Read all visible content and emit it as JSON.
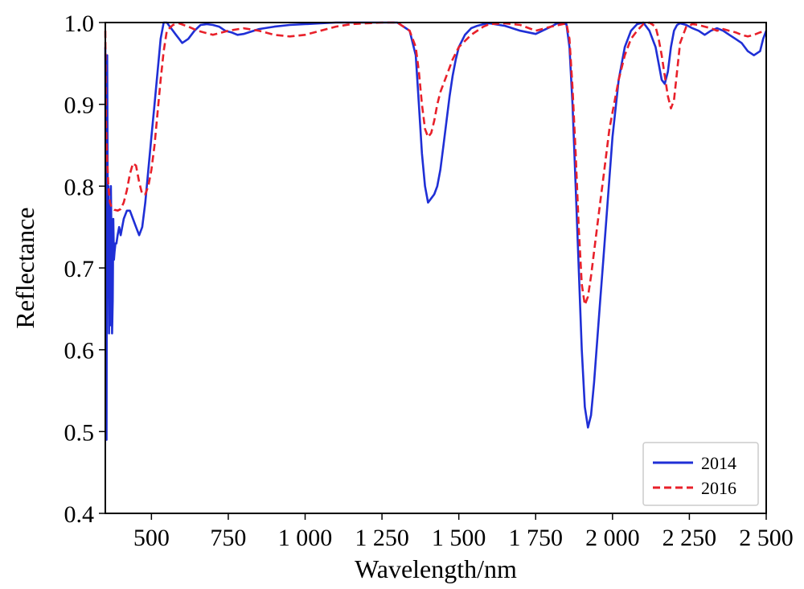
{
  "chart_data": {
    "type": "line",
    "title": "",
    "xlabel": "Wavelength/nm",
    "ylabel": "Reflectance",
    "xlim": [
      350,
      2500
    ],
    "ylim": [
      0.4,
      1.0
    ],
    "x_ticks": [
      500,
      750,
      1000,
      1250,
      1500,
      1750,
      2000,
      2250,
      2500
    ],
    "x_tick_labels": [
      "500",
      "750",
      "1 000",
      "1 250",
      "1 500",
      "1 750",
      "2 000",
      "2 250",
      "2 500"
    ],
    "y_ticks": [
      0.4,
      0.5,
      0.6,
      0.7,
      0.8,
      0.9,
      1.0
    ],
    "y_tick_labels": [
      "0.4",
      "0.5",
      "0.6",
      "0.7",
      "0.8",
      "0.9",
      "1.0"
    ],
    "grid": false,
    "legend_position": "bottom-right",
    "series": [
      {
        "name": "2014",
        "color": "#1f2fd6",
        "style": "solid",
        "x": [
          350,
          352,
          354,
          356,
          358,
          360,
          362,
          364,
          366,
          368,
          370,
          372,
          374,
          376,
          378,
          380,
          383,
          386,
          390,
          395,
          400,
          410,
          420,
          430,
          440,
          450,
          460,
          470,
          480,
          490,
          500,
          510,
          520,
          530,
          540,
          550,
          560,
          570,
          580,
          590,
          600,
          620,
          640,
          660,
          680,
          700,
          720,
          740,
          760,
          780,
          800,
          850,
          900,
          950,
          1000,
          1050,
          1100,
          1150,
          1200,
          1250,
          1300,
          1340,
          1360,
          1370,
          1380,
          1390,
          1400,
          1410,
          1420,
          1430,
          1440,
          1450,
          1460,
          1470,
          1480,
          1490,
          1500,
          1520,
          1540,
          1560,
          1580,
          1600,
          1650,
          1700,
          1750,
          1800,
          1820,
          1850,
          1860,
          1870,
          1880,
          1890,
          1900,
          1910,
          1920,
          1930,
          1940,
          1950,
          1960,
          1970,
          1980,
          1990,
          2000,
          2020,
          2040,
          2060,
          2080,
          2100,
          2120,
          2140,
          2150,
          2160,
          2170,
          2180,
          2190,
          2200,
          2210,
          2220,
          2240,
          2260,
          2280,
          2300,
          2320,
          2340,
          2360,
          2380,
          2400,
          2420,
          2440,
          2460,
          2480,
          2490,
          2500
        ],
        "y": [
          0.97,
          0.58,
          0.49,
          0.96,
          0.75,
          0.8,
          0.62,
          0.78,
          0.63,
          0.8,
          0.74,
          0.62,
          0.66,
          0.76,
          0.71,
          0.72,
          0.73,
          0.73,
          0.74,
          0.75,
          0.74,
          0.76,
          0.77,
          0.77,
          0.76,
          0.75,
          0.74,
          0.75,
          0.78,
          0.82,
          0.86,
          0.9,
          0.94,
          0.98,
          1.0,
          1.0,
          0.995,
          0.99,
          0.985,
          0.98,
          0.975,
          0.98,
          0.99,
          0.997,
          0.998,
          0.997,
          0.995,
          0.99,
          0.988,
          0.985,
          0.986,
          0.992,
          0.995,
          0.997,
          0.998,
          0.999,
          1.0,
          1.0,
          1.0,
          1.0,
          1.0,
          0.99,
          0.96,
          0.9,
          0.84,
          0.8,
          0.78,
          0.785,
          0.79,
          0.8,
          0.82,
          0.85,
          0.88,
          0.91,
          0.935,
          0.955,
          0.97,
          0.985,
          0.993,
          0.996,
          0.998,
          0.999,
          0.996,
          0.99,
          0.986,
          0.995,
          0.999,
          0.998,
          0.97,
          0.9,
          0.8,
          0.7,
          0.6,
          0.53,
          0.505,
          0.52,
          0.56,
          0.61,
          0.66,
          0.71,
          0.76,
          0.81,
          0.86,
          0.93,
          0.97,
          0.99,
          0.998,
          1.0,
          0.99,
          0.97,
          0.95,
          0.93,
          0.925,
          0.94,
          0.97,
          0.99,
          0.997,
          0.999,
          0.997,
          0.993,
          0.99,
          0.985,
          0.99,
          0.993,
          0.99,
          0.985,
          0.98,
          0.975,
          0.965,
          0.96,
          0.965,
          0.98,
          0.99
        ]
      },
      {
        "name": "2016",
        "color": "#e8202a",
        "style": "dashed",
        "x": [
          350,
          352,
          355,
          360,
          365,
          370,
          375,
          380,
          390,
          400,
          410,
          420,
          430,
          440,
          450,
          460,
          470,
          480,
          490,
          500,
          510,
          520,
          530,
          540,
          550,
          570,
          590,
          620,
          650,
          700,
          750,
          800,
          850,
          900,
          950,
          1000,
          1050,
          1100,
          1150,
          1200,
          1250,
          1300,
          1340,
          1360,
          1370,
          1380,
          1390,
          1400,
          1410,
          1420,
          1430,
          1440,
          1460,
          1480,
          1500,
          1540,
          1580,
          1600,
          1650,
          1700,
          1750,
          1800,
          1850,
          1860,
          1870,
          1880,
          1890,
          1900,
          1910,
          1920,
          1930,
          1940,
          1950,
          1960,
          1970,
          1980,
          1990,
          2000,
          2020,
          2040,
          2060,
          2080,
          2100,
          2120,
          2140,
          2150,
          2160,
          2170,
          2180,
          2190,
          2200,
          2210,
          2220,
          2240,
          2260,
          2280,
          2300,
          2320,
          2340,
          2360,
          2380,
          2400,
          2420,
          2440,
          2460,
          2480,
          2500
        ],
        "y": [
          0.99,
          0.88,
          0.84,
          0.8,
          0.78,
          0.775,
          0.773,
          0.771,
          0.77,
          0.772,
          0.78,
          0.795,
          0.815,
          0.828,
          0.825,
          0.805,
          0.79,
          0.79,
          0.8,
          0.82,
          0.85,
          0.89,
          0.93,
          0.965,
          0.99,
          0.997,
          0.999,
          0.995,
          0.99,
          0.985,
          0.99,
          0.993,
          0.99,
          0.985,
          0.983,
          0.985,
          0.99,
          0.995,
          0.998,
          0.999,
          1.0,
          1.0,
          0.99,
          0.97,
          0.94,
          0.9,
          0.87,
          0.86,
          0.865,
          0.88,
          0.9,
          0.915,
          0.935,
          0.955,
          0.97,
          0.985,
          0.995,
          0.998,
          0.999,
          0.997,
          0.99,
          0.995,
          0.999,
          0.98,
          0.92,
          0.84,
          0.75,
          0.68,
          0.655,
          0.665,
          0.69,
          0.72,
          0.75,
          0.78,
          0.81,
          0.84,
          0.87,
          0.89,
          0.93,
          0.96,
          0.98,
          0.99,
          0.998,
          1.0,
          0.995,
          0.98,
          0.96,
          0.935,
          0.91,
          0.895,
          0.905,
          0.94,
          0.975,
          0.995,
          0.998,
          0.997,
          0.995,
          0.993,
          0.99,
          0.992,
          0.99,
          0.988,
          0.985,
          0.983,
          0.985,
          0.988,
          0.99
        ]
      }
    ]
  }
}
